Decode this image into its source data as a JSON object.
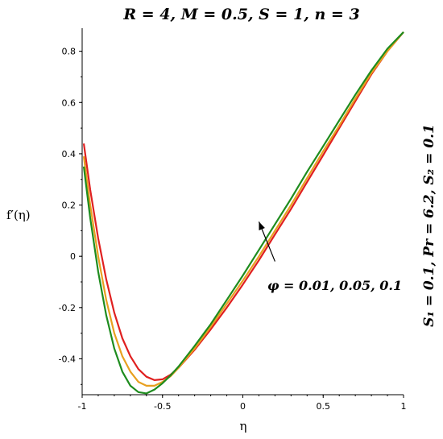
{
  "chart_data": {
    "type": "line",
    "title": "R = 4, M = 0.5, S = 1, n = 3",
    "xlabel": "η",
    "ylabel": "f′(η)",
    "side_note": "S₁ = 0.1, Pr = 6.2, S₂ = 0.1",
    "annotation": "φ = 0.01, 0.05, 0.1",
    "xlim": [
      -1,
      1
    ],
    "ylim": [
      -0.54,
      0.89
    ],
    "x_ticks": [
      -1,
      -0.5,
      0,
      0.5,
      1
    ],
    "x_tick_labels": [
      "-1",
      "-0.5",
      "0",
      "0.5",
      "1"
    ],
    "y_ticks": [
      -0.4,
      -0.2,
      0,
      0.2,
      0.4,
      0.6,
      0.8
    ],
    "y_tick_labels": [
      "-0.4",
      "-0.2",
      "0",
      "0.2",
      "0.4",
      "0.6",
      "0.8"
    ],
    "grid": false,
    "legend": "none",
    "series": [
      {
        "color": "#e02020",
        "points": [
          [
            -0.99,
            0.44
          ],
          [
            -0.95,
            0.26
          ],
          [
            -0.9,
            0.07
          ],
          [
            -0.85,
            -0.09
          ],
          [
            -0.8,
            -0.22
          ],
          [
            -0.75,
            -0.32
          ],
          [
            -0.7,
            -0.39
          ],
          [
            -0.65,
            -0.44
          ],
          [
            -0.6,
            -0.47
          ],
          [
            -0.55,
            -0.483
          ],
          [
            -0.5,
            -0.48
          ],
          [
            -0.45,
            -0.462
          ],
          [
            -0.4,
            -0.435
          ],
          [
            -0.3,
            -0.365
          ],
          [
            -0.2,
            -0.285
          ],
          [
            -0.1,
            -0.2
          ],
          [
            0,
            -0.11
          ],
          [
            0.1,
            -0.015
          ],
          [
            0.2,
            0.085
          ],
          [
            0.3,
            0.185
          ],
          [
            0.4,
            0.29
          ],
          [
            0.5,
            0.395
          ],
          [
            0.6,
            0.5
          ],
          [
            0.7,
            0.605
          ],
          [
            0.8,
            0.71
          ],
          [
            0.9,
            0.8
          ],
          [
            1.0,
            0.875
          ]
        ]
      },
      {
        "color": "#e8a020",
        "points": [
          [
            -0.99,
            0.39
          ],
          [
            -0.95,
            0.2
          ],
          [
            -0.9,
            0.0
          ],
          [
            -0.85,
            -0.17
          ],
          [
            -0.8,
            -0.3
          ],
          [
            -0.75,
            -0.39
          ],
          [
            -0.7,
            -0.45
          ],
          [
            -0.65,
            -0.49
          ],
          [
            -0.6,
            -0.505
          ],
          [
            -0.55,
            -0.505
          ],
          [
            -0.5,
            -0.49
          ],
          [
            -0.45,
            -0.468
          ],
          [
            -0.4,
            -0.435
          ],
          [
            -0.3,
            -0.36
          ],
          [
            -0.2,
            -0.275
          ],
          [
            -0.1,
            -0.185
          ],
          [
            0,
            -0.095
          ],
          [
            0.1,
            0.0
          ],
          [
            0.2,
            0.1
          ],
          [
            0.3,
            0.2
          ],
          [
            0.4,
            0.305
          ],
          [
            0.5,
            0.41
          ],
          [
            0.6,
            0.51
          ],
          [
            0.7,
            0.615
          ],
          [
            0.8,
            0.715
          ],
          [
            0.9,
            0.8
          ],
          [
            1.0,
            0.875
          ]
        ]
      },
      {
        "color": "#1e8c1e",
        "points": [
          [
            -0.99,
            0.35
          ],
          [
            -0.95,
            0.15
          ],
          [
            -0.9,
            -0.06
          ],
          [
            -0.85,
            -0.23
          ],
          [
            -0.8,
            -0.36
          ],
          [
            -0.75,
            -0.45
          ],
          [
            -0.7,
            -0.505
          ],
          [
            -0.65,
            -0.53
          ],
          [
            -0.6,
            -0.535
          ],
          [
            -0.55,
            -0.52
          ],
          [
            -0.5,
            -0.495
          ],
          [
            -0.45,
            -0.465
          ],
          [
            -0.4,
            -0.43
          ],
          [
            -0.3,
            -0.35
          ],
          [
            -0.2,
            -0.265
          ],
          [
            -0.1,
            -0.17
          ],
          [
            0,
            -0.075
          ],
          [
            0.1,
            0.025
          ],
          [
            0.2,
            0.125
          ],
          [
            0.3,
            0.225
          ],
          [
            0.4,
            0.33
          ],
          [
            0.5,
            0.43
          ],
          [
            0.6,
            0.53
          ],
          [
            0.7,
            0.63
          ],
          [
            0.8,
            0.725
          ],
          [
            0.9,
            0.81
          ],
          [
            1.0,
            0.875
          ]
        ]
      }
    ]
  }
}
